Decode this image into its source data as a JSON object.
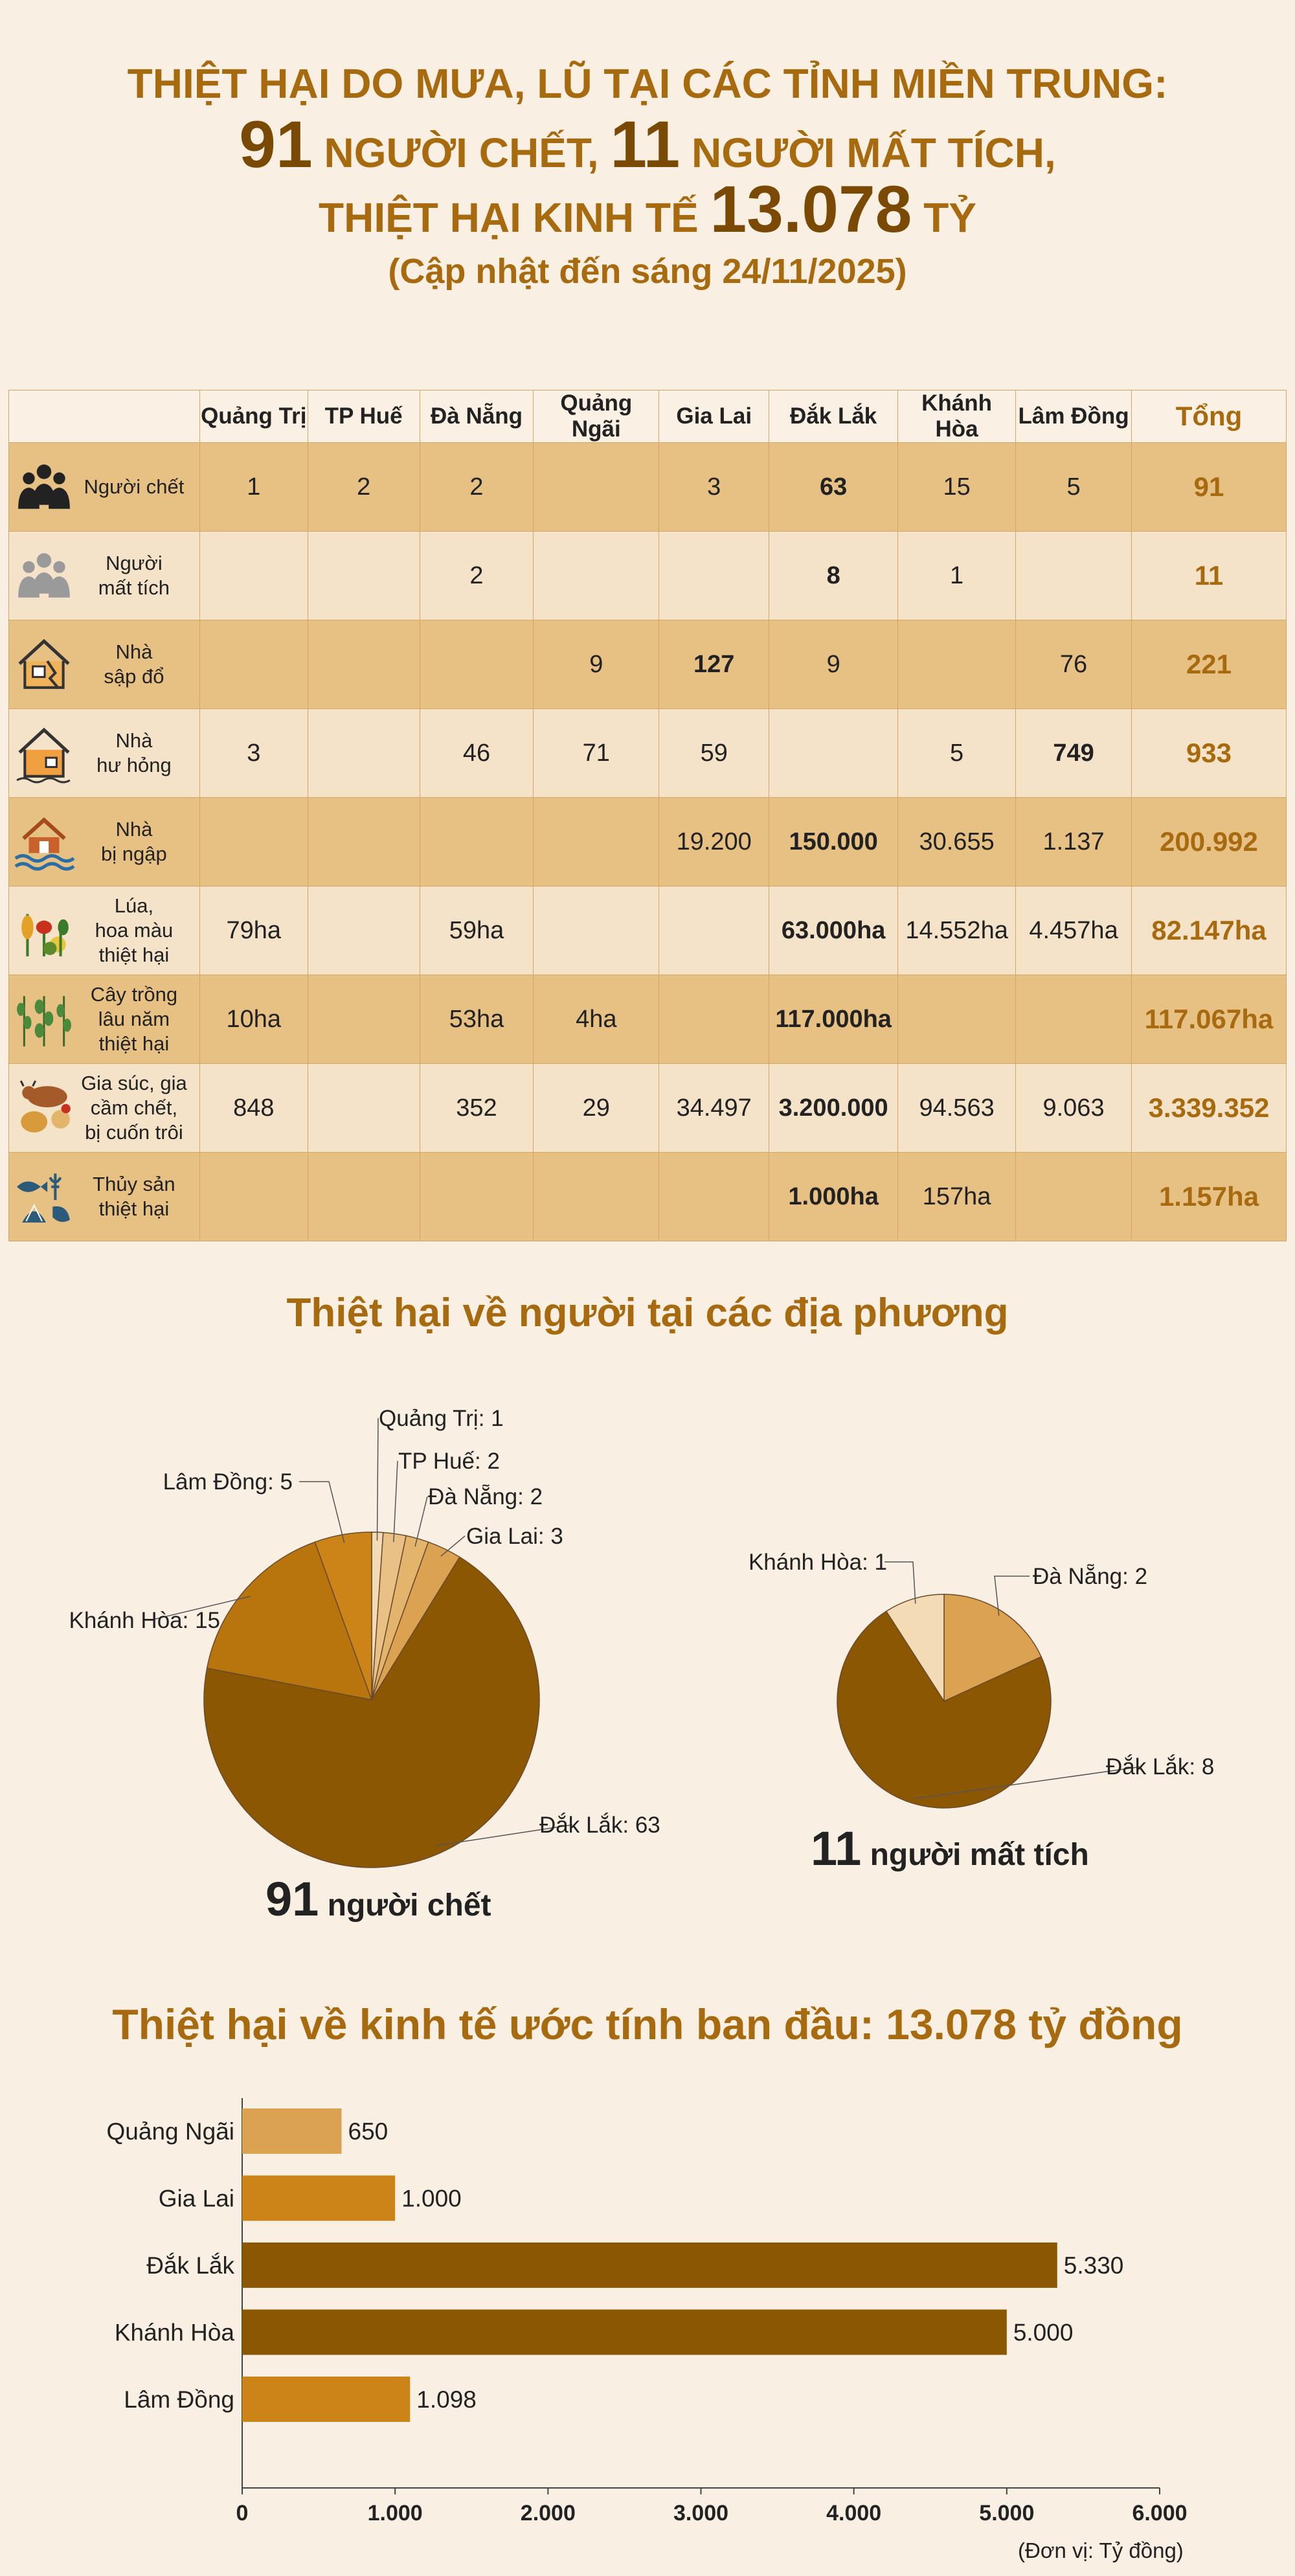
{
  "header": {
    "line1": "THIỆT HẠI DO MƯA, LŨ TẠI CÁC TỈNH MIỀN TRUNG:",
    "dead_num": "91",
    "dead_text": " NGƯỜI CHẾT, ",
    "missing_num": "11",
    "missing_text": " NGƯỜI MẤT TÍCH,",
    "econ_text": "THIỆT HẠI KINH TẾ ",
    "econ_num": "13.078",
    "econ_unit": " TỶ",
    "updated": "(Cập nhật đến sáng 24/11/2025)"
  },
  "table": {
    "columns": [
      "Quảng Trị",
      "TP Huế",
      "Đà Nẵng",
      "Quảng Ngãi",
      "Gia Lai",
      "Đắk Lắk",
      "Khánh Hòa",
      "Lâm Đồng"
    ],
    "total_label": "Tổng",
    "rows": [
      {
        "label": "Người chết",
        "icon": "people-icon",
        "cells": [
          "1",
          "2",
          "2",
          "",
          "3",
          "63",
          "15",
          "5"
        ],
        "bold": [
          5
        ],
        "total": "91"
      },
      {
        "label": "Người\nmất tích",
        "icon": "missing-people-icon",
        "cells": [
          "",
          "",
          "2",
          "",
          "",
          "8",
          "1",
          ""
        ],
        "bold": [
          5
        ],
        "total": "11"
      },
      {
        "label": "Nhà\nsập đổ",
        "icon": "collapsed-house-icon",
        "cells": [
          "",
          "",
          "",
          "9",
          "127",
          "9",
          "",
          "76"
        ],
        "bold": [
          4
        ],
        "total": "221"
      },
      {
        "label": "Nhà\như hỏng",
        "icon": "damaged-house-icon",
        "cells": [
          "3",
          "",
          "46",
          "71",
          "59",
          "",
          "5",
          "749"
        ],
        "bold": [
          7
        ],
        "total": "933"
      },
      {
        "label": "Nhà\nbị ngập",
        "icon": "flooded-house-icon",
        "cells": [
          "",
          "",
          "",
          "",
          "19.200",
          "150.000",
          "30.655",
          "1.137"
        ],
        "bold": [
          5
        ],
        "total": "200.992"
      },
      {
        "label": "Lúa,\nhoa màu\nthiệt hại",
        "icon": "crops-icon",
        "cells": [
          "79ha",
          "",
          "59ha",
          "",
          "",
          "63.000ha",
          "14.552ha",
          "4.457ha"
        ],
        "bold": [
          5
        ],
        "total": "82.147ha"
      },
      {
        "label": "Cây trồng\nlâu năm\nthiệt hại",
        "icon": "trees-icon",
        "cells": [
          "10ha",
          "",
          "53ha",
          "4ha",
          "",
          "117.000ha",
          "",
          ""
        ],
        "bold": [
          5
        ],
        "total": "117.067ha"
      },
      {
        "label": "Gia súc, gia\ncầm chết,\nbị cuốn trôi",
        "icon": "livestock-icon",
        "cells": [
          "848",
          "",
          "352",
          "29",
          "34.497",
          "3.200.000",
          "94.563",
          "9.063"
        ],
        "bold": [
          5
        ],
        "total": "3.339.352"
      },
      {
        "label": "Thủy sản\nthiệt hại",
        "icon": "seafood-icon",
        "cells": [
          "",
          "",
          "",
          "",
          "",
          "1.000ha",
          "157ha",
          ""
        ],
        "bold": [
          5
        ],
        "total": "1.157ha"
      }
    ]
  },
  "section_people": "Thiệt hại về người tại các địa phương",
  "pie_dead_caption": {
    "num": "91",
    "text": " người chết"
  },
  "pie_missing_caption": {
    "num": "11",
    "text": " người mất tích"
  },
  "section_econ": "Thiệt hại về kinh tế ước tính ban đầu: 13.078 tỷ đồng",
  "unit_note": "(Đơn vị: Tỷ đồng)",
  "colors": {
    "accent": "#a76a0f",
    "dark": "#8b5702",
    "mid": "#cc8419",
    "light": "#dba351",
    "pale": "#e9c187",
    "palest": "#f3dbb6"
  },
  "chart_data": [
    {
      "type": "pie",
      "caption": "91 người chết",
      "slices": [
        {
          "name": "Quảng Trị",
          "value": 1,
          "label": "Quảng Trị: 1",
          "color": "#f3dbb6"
        },
        {
          "name": "TP Huế",
          "value": 2,
          "label": "TP Huế: 2",
          "color": "#e9c187"
        },
        {
          "name": "Đà Nẵng",
          "value": 2,
          "label": "Đà Nẵng: 2",
          "color": "#e3b46c"
        },
        {
          "name": "Gia Lai",
          "value": 3,
          "label": "Gia Lai: 3",
          "color": "#dba351"
        },
        {
          "name": "Đắk Lắk",
          "value": 63,
          "label": "Đắk Lắk: 63",
          "color": "#8b5702"
        },
        {
          "name": "Khánh Hòa",
          "value": 15,
          "label": "Khánh Hòa: 15",
          "color": "#b8740d"
        },
        {
          "name": "Lâm Đồng",
          "value": 5,
          "label": "Lâm Đồng: 5",
          "color": "#cc8419"
        }
      ]
    },
    {
      "type": "pie",
      "caption": "11 người mất tích",
      "slices": [
        {
          "name": "Đà Nẵng",
          "value": 2,
          "label": "Đà Nẵng: 2",
          "color": "#dba351"
        },
        {
          "name": "Đắk Lắk",
          "value": 8,
          "label": "Đắk Lắk: 8",
          "color": "#8b5702"
        },
        {
          "name": "Khánh Hòa",
          "value": 1,
          "label": "Khánh Hòa: 1",
          "color": "#f3dbb6"
        }
      ]
    },
    {
      "type": "bar",
      "orientation": "horizontal",
      "title": "Thiệt hại về kinh tế ước tính ban đầu: 13.078 tỷ đồng",
      "categories": [
        "Quảng Ngãi",
        "Gia Lai",
        "Đắk Lắk",
        "Khánh Hòa",
        "Lâm Đồng"
      ],
      "values": [
        650,
        1000,
        5330,
        5000,
        1098
      ],
      "value_labels": [
        "650",
        "1.000",
        "5.330",
        "5.000",
        "1.098"
      ],
      "colors": [
        "#dba351",
        "#cc8419",
        "#8b5702",
        "#8b5702",
        "#cc8419"
      ],
      "xlim": [
        0,
        6000
      ],
      "xticks": [
        0,
        1000,
        2000,
        3000,
        4000,
        5000,
        6000
      ],
      "xtick_labels": [
        "0",
        "1.000",
        "2.000",
        "3.000",
        "4.000",
        "5.000",
        "6.000"
      ],
      "unit": "(Đơn vị: Tỷ đồng)",
      "grid": false
    }
  ]
}
